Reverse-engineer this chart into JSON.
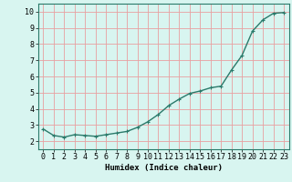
{
  "x": [
    0,
    1,
    2,
    3,
    4,
    5,
    6,
    7,
    8,
    9,
    10,
    11,
    12,
    13,
    14,
    15,
    16,
    17,
    18,
    19,
    20,
    21,
    22,
    23
  ],
  "y": [
    2.75,
    2.35,
    2.25,
    2.4,
    2.35,
    2.3,
    2.4,
    2.5,
    2.6,
    2.85,
    3.2,
    3.65,
    4.2,
    4.6,
    4.95,
    5.1,
    5.3,
    5.4,
    6.4,
    7.3,
    8.8,
    9.5,
    9.9,
    9.95
  ],
  "line_color": "#2a7a6a",
  "marker": "+",
  "markersize": 3,
  "linewidth": 1.0,
  "bg_color": "#d8f5f0",
  "grid_color": "#e8a0a0",
  "xlabel": "Humidex (Indice chaleur)",
  "xlabel_fontsize": 6.5,
  "tick_fontsize": 6.0,
  "xlim": [
    -0.5,
    23.5
  ],
  "ylim": [
    1.5,
    10.5
  ],
  "yticks": [
    2,
    3,
    4,
    5,
    6,
    7,
    8,
    9,
    10
  ],
  "xticks": [
    0,
    1,
    2,
    3,
    4,
    5,
    6,
    7,
    8,
    9,
    10,
    11,
    12,
    13,
    14,
    15,
    16,
    17,
    18,
    19,
    20,
    21,
    22,
    23
  ]
}
